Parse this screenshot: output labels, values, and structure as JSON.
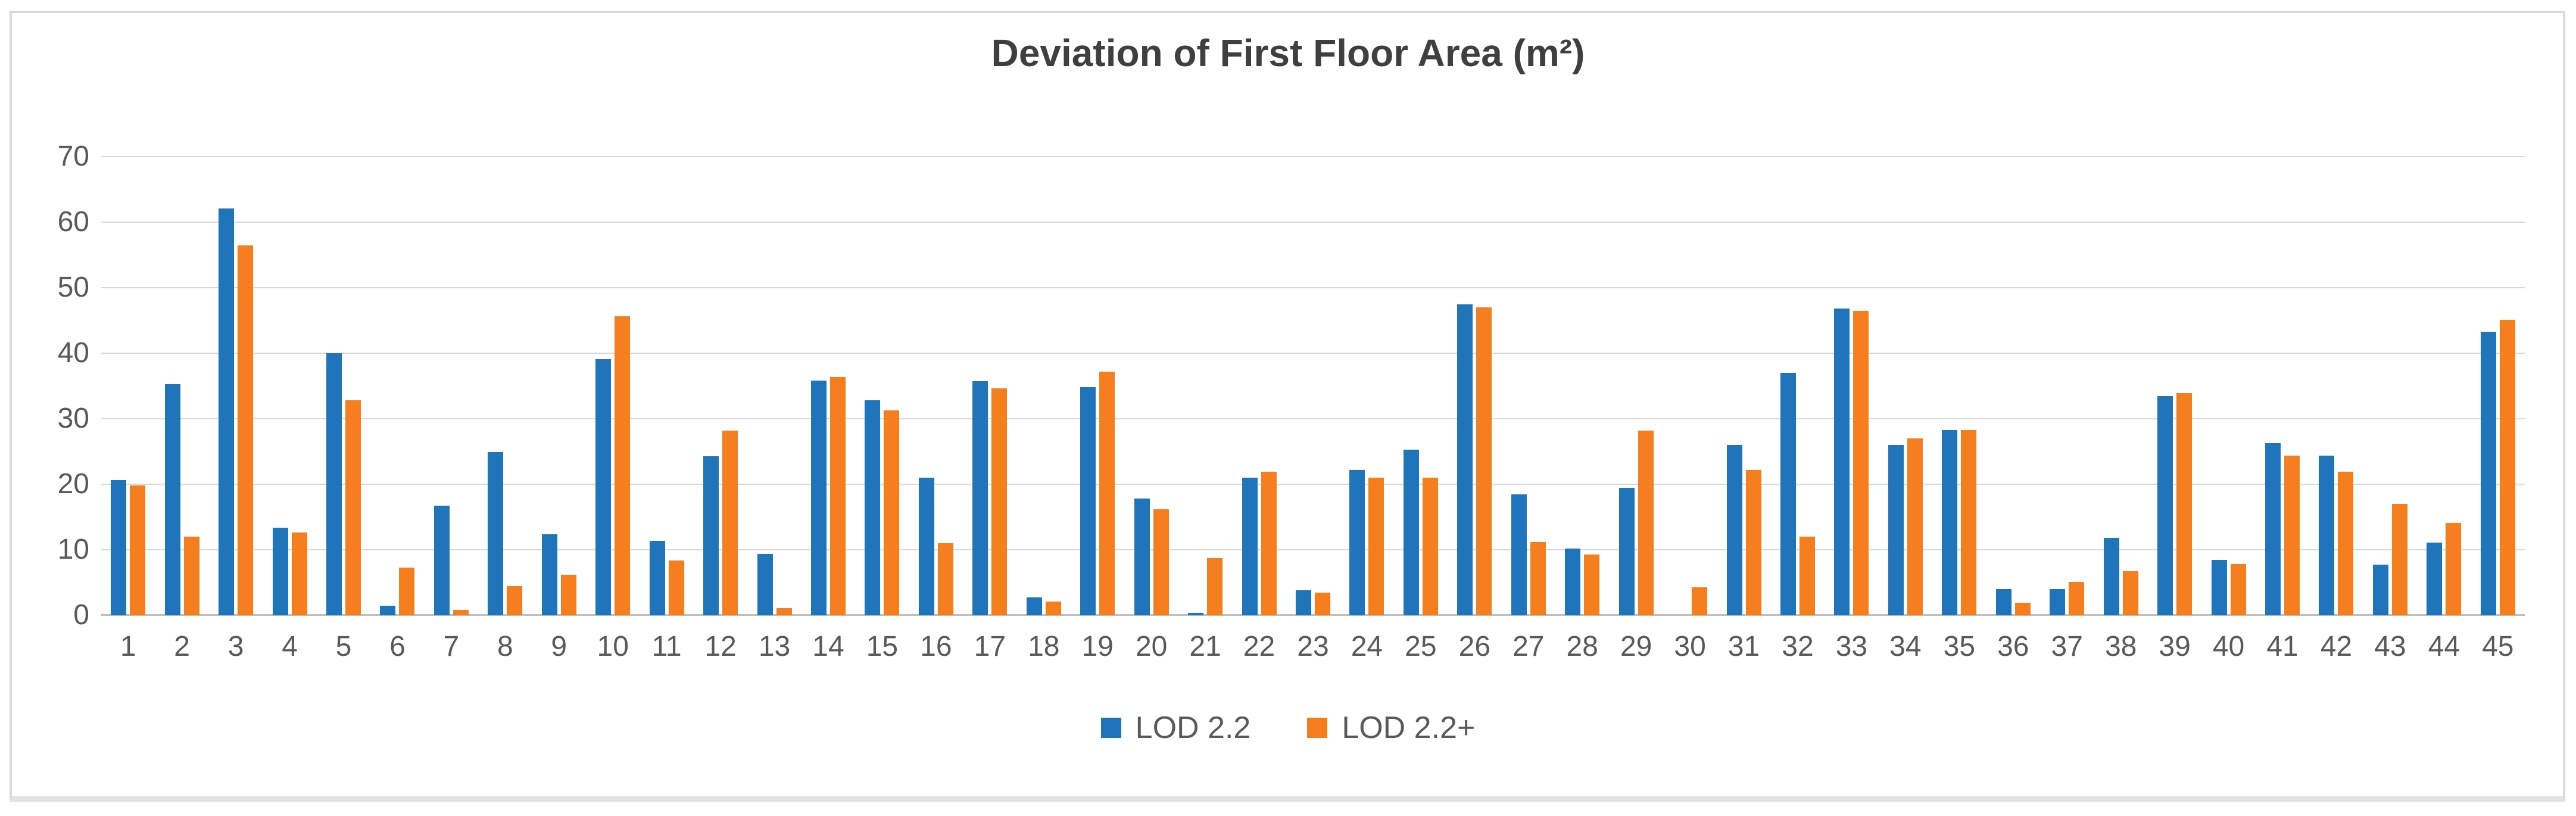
{
  "chart_data": {
    "type": "bar",
    "title": "Deviation of First Floor Area (m²)",
    "xlabel": "",
    "ylabel": "",
    "ylim": [
      0,
      70
    ],
    "yticks": [
      0,
      10,
      20,
      30,
      40,
      50,
      60,
      70
    ],
    "grid": true,
    "legend_position": "bottom",
    "categories": [
      "1",
      "2",
      "3",
      "4",
      "5",
      "6",
      "7",
      "8",
      "9",
      "10",
      "11",
      "12",
      "13",
      "14",
      "15",
      "16",
      "17",
      "18",
      "19",
      "20",
      "21",
      "22",
      "23",
      "24",
      "25",
      "26",
      "27",
      "28",
      "29",
      "30",
      "31",
      "32",
      "33",
      "34",
      "35",
      "36",
      "37",
      "38",
      "39",
      "40",
      "41",
      "42",
      "43",
      "44",
      "45"
    ],
    "series": [
      {
        "name": "LOD 2.2",
        "color": "#2074b9",
        "values": [
          20.6,
          35.3,
          62.1,
          13.4,
          40.0,
          1.5,
          16.7,
          24.9,
          12.4,
          39.1,
          11.4,
          24.3,
          9.4,
          35.8,
          32.8,
          21.0,
          35.7,
          2.7,
          34.8,
          17.8,
          0.4,
          21.0,
          3.8,
          22.2,
          25.3,
          47.5,
          18.5,
          10.2,
          19.5,
          0,
          26.0,
          37.0,
          46.8,
          26.0,
          28.3,
          4.0,
          4.0,
          11.8,
          33.5,
          8.5,
          26.3,
          24.4,
          7.7,
          11.1,
          43.3
        ]
      },
      {
        "name": "LOD 2.2+",
        "color": "#f57f1f",
        "values": [
          19.8,
          12.0,
          56.5,
          12.6,
          32.8,
          7.3,
          0.8,
          4.5,
          6.2,
          45.6,
          8.4,
          28.2,
          1.1,
          36.4,
          31.3,
          11.0,
          34.6,
          2.1,
          37.2,
          16.2,
          8.7,
          21.9,
          3.5,
          21.0,
          21.0,
          47.0,
          11.2,
          9.3,
          28.2,
          4.3,
          22.2,
          12.0,
          46.5,
          27.0,
          28.3,
          1.9,
          5.1,
          6.7,
          33.9,
          7.8,
          24.4,
          21.9,
          17.0,
          14.1,
          45.1
        ]
      }
    ]
  },
  "colors": {
    "grid": "#d9d9d9",
    "axis": "#bfbfbf",
    "tick_text": "#595959",
    "title_text": "#3f3f3f"
  }
}
